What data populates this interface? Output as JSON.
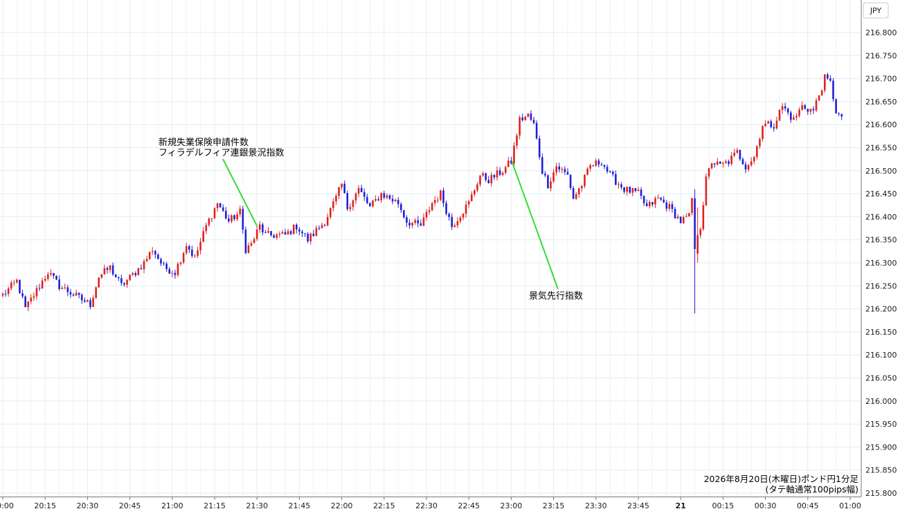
{
  "chart_data": {
    "type": "candlestick",
    "currency": "JPY",
    "caption": [
      "2026年8月20日(木曜日)ポンド円1分足",
      "(タテ軸通常100pips幅)"
    ],
    "y_ticks": [
      "216.800",
      "216.750",
      "216.700",
      "216.650",
      "216.600",
      "216.550",
      "216.500",
      "216.450",
      "216.400",
      "216.350",
      "216.300",
      "216.250",
      "216.200",
      "216.150",
      "216.100",
      "216.050",
      "216.000",
      "215.950",
      "215.900",
      "215.850",
      "215.800"
    ],
    "x_ticks": [
      "20:00",
      "20:15",
      "20:30",
      "20:45",
      "21:00",
      "21:15",
      "21:30",
      "21:45",
      "22:00",
      "22:15",
      "22:30",
      "22:45",
      "23:00",
      "23:15",
      "23:30",
      "23:45",
      "21",
      "00:15",
      "00:30",
      "00:45",
      "01:00"
    ],
    "ylim": [
      215.8,
      216.8
    ],
    "grid": true,
    "colors": {
      "up": "#e0201f",
      "down": "#1f1fd6",
      "annotation_line": "#33dd33",
      "grid": "#e3ecf3"
    },
    "annotations": [
      {
        "text": [
          "新規失業保険申請件数",
          "フィラデルフィア連銀景況指数"
        ],
        "time": "21:30",
        "price": 216.38
      },
      {
        "text": [
          "景気先行指数"
        ],
        "time": "23:00",
        "price": 216.52
      }
    ],
    "series": [
      {
        "anchors": [
          [
            "20:00",
            216.23
          ],
          [
            "20:05",
            216.26
          ],
          [
            "20:08",
            216.2
          ],
          [
            "20:12",
            216.24
          ],
          [
            "20:16",
            216.28
          ],
          [
            "20:20",
            216.25
          ],
          [
            "20:28",
            216.22
          ],
          [
            "20:31",
            216.21
          ],
          [
            "20:34",
            216.27
          ],
          [
            "20:38",
            216.29
          ],
          [
            "20:42",
            216.25
          ],
          [
            "20:47",
            216.28
          ],
          [
            "20:50",
            216.3
          ],
          [
            "20:53",
            216.33
          ],
          [
            "20:57",
            216.29
          ],
          [
            "21:01",
            216.28
          ],
          [
            "21:03",
            216.31
          ],
          [
            "21:05",
            216.34
          ],
          [
            "21:08",
            216.31
          ],
          [
            "21:12",
            216.38
          ],
          [
            "21:16",
            216.43
          ],
          [
            "21:20",
            216.39
          ],
          [
            "21:24",
            216.41
          ],
          [
            "21:26",
            216.33
          ],
          [
            "21:28",
            216.34
          ],
          [
            "21:31",
            216.38
          ],
          [
            "21:33",
            216.36
          ],
          [
            "21:40",
            216.36
          ],
          [
            "21:44",
            216.38
          ],
          [
            "21:48",
            216.35
          ],
          [
            "21:54",
            216.39
          ],
          [
            "21:58",
            216.44
          ],
          [
            "22:00",
            216.47
          ],
          [
            "22:02",
            216.42
          ],
          [
            "22:04",
            216.44
          ],
          [
            "22:06",
            216.46
          ],
          [
            "22:10",
            216.42
          ],
          [
            "22:14",
            216.45
          ],
          [
            "22:20",
            216.43
          ],
          [
            "22:23",
            216.39
          ],
          [
            "22:28",
            216.38
          ],
          [
            "22:32",
            216.43
          ],
          [
            "22:35",
            216.45
          ],
          [
            "22:39",
            216.38
          ],
          [
            "22:45",
            216.43
          ],
          [
            "22:49",
            216.49
          ],
          [
            "22:52",
            216.48
          ],
          [
            "22:57",
            216.5
          ],
          [
            "23:00",
            216.52
          ],
          [
            "23:03",
            216.61
          ],
          [
            "23:06",
            216.62
          ],
          [
            "23:08",
            216.6
          ],
          [
            "23:11",
            216.5
          ],
          [
            "23:13",
            216.47
          ],
          [
            "23:16",
            216.51
          ],
          [
            "23:20",
            216.49
          ],
          [
            "23:22",
            216.44
          ],
          [
            "23:25",
            216.47
          ],
          [
            "23:28",
            216.51
          ],
          [
            "23:32",
            216.52
          ],
          [
            "23:35",
            216.49
          ],
          [
            "23:40",
            216.46
          ],
          [
            "23:45",
            216.45
          ],
          [
            "23:48",
            216.42
          ],
          [
            "23:52",
            216.44
          ],
          [
            "23:56",
            216.42
          ],
          [
            "00:00",
            216.39
          ],
          [
            "00:03",
            216.4
          ],
          [
            "00:04",
            216.44
          ],
          [
            "00:05",
            216.35
          ],
          [
            "00:06",
            216.34
          ],
          [
            "00:07",
            216.38
          ],
          [
            "00:09",
            216.48
          ],
          [
            "00:11",
            216.52
          ],
          [
            "00:14",
            216.51
          ],
          [
            "00:17",
            216.52
          ],
          [
            "00:20",
            216.54
          ],
          [
            "00:23",
            216.51
          ],
          [
            "00:26",
            216.53
          ],
          [
            "00:29",
            216.6
          ],
          [
            "00:33",
            216.6
          ],
          [
            "00:36",
            216.64
          ],
          [
            "00:40",
            216.61
          ],
          [
            "00:43",
            216.64
          ],
          [
            "00:47",
            216.63
          ],
          [
            "00:51",
            216.7
          ],
          [
            "00:53",
            216.69
          ],
          [
            "00:55",
            216.63
          ],
          [
            "00:57",
            216.61
          ]
        ],
        "spikes": [
          {
            "time": "00:05",
            "open": 216.44,
            "high": 216.46,
            "low": 216.19,
            "close": 216.33
          },
          {
            "time": "00:06",
            "open": 216.32,
            "high": 216.42,
            "low": 216.3,
            "close": 216.36
          }
        ]
      }
    ]
  }
}
